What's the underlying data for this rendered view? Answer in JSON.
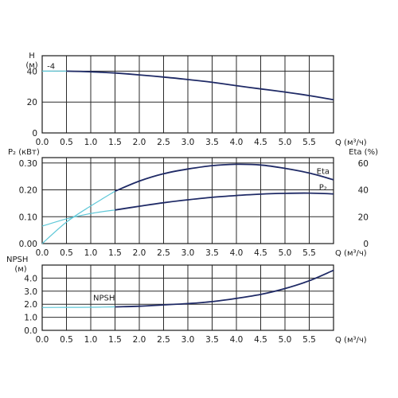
{
  "chart_data": [
    {
      "type": "line",
      "panel": "head",
      "ylabel": "H",
      "yunit": "(м)",
      "xlabel": "Q (м³/ч)",
      "xlim": [
        0,
        6
      ],
      "ylim": [
        0,
        50
      ],
      "yticks": [
        0,
        20,
        40
      ],
      "xticks": [
        "0.0",
        "0.5",
        "1.0",
        "1.5",
        "2.0",
        "2.5",
        "3.0",
        "3.5",
        "4.0",
        "4.5",
        "5.0",
        "5.5"
      ],
      "annotations": [
        {
          "text": "-4",
          "x": 0.1,
          "y": 40.5
        }
      ],
      "series": [
        {
          "style": "light",
          "x": [
            0,
            0.5,
            1.0,
            1.5
          ],
          "y": [
            40,
            40,
            39.5,
            38.8
          ]
        },
        {
          "style": "dark",
          "x": [
            0.5,
            1.0,
            1.5,
            2.0,
            2.5,
            3.0,
            3.5,
            4.0,
            4.5,
            5.0,
            5.5,
            6.0
          ],
          "y": [
            40,
            39.6,
            38.8,
            37.6,
            36.2,
            34.6,
            32.8,
            30.6,
            28.5,
            26.5,
            24.2,
            21.5
          ]
        }
      ]
    },
    {
      "type": "line",
      "panel": "power-efficiency",
      "ylabel": "P₂ (кВт)",
      "ylabel_right": "Eta (%)",
      "xlabel": "Q (м³/ч)",
      "xlim": [
        0,
        6
      ],
      "ylim": [
        0,
        0.32
      ],
      "ylim_right": [
        0,
        64
      ],
      "yticks": [
        "0.00",
        "0.10",
        "0.20",
        "0.30"
      ],
      "yticks_right": [
        0,
        20,
        40,
        60
      ],
      "xticks": [
        "0.0",
        "0.5",
        "1.0",
        "1.5",
        "2.0",
        "2.5",
        "3.0",
        "3.5",
        "4.0",
        "4.5",
        "5.0",
        "5.5"
      ],
      "series": [
        {
          "name": "Eta",
          "axis": "right",
          "style": "light",
          "x": [
            0,
            0.5,
            1.0,
            1.5
          ],
          "y": [
            0,
            16,
            28,
            39
          ]
        },
        {
          "name": "Eta",
          "axis": "right",
          "style": "dark",
          "x": [
            1.5,
            2.0,
            2.5,
            3.0,
            3.5,
            4.0,
            4.5,
            5.0,
            5.5,
            6.0
          ],
          "y": [
            39,
            46.5,
            52,
            55.5,
            58,
            59,
            58.5,
            56,
            52.5,
            47.5
          ]
        },
        {
          "name": "P₂",
          "axis": "left",
          "style": "light",
          "x": [
            0,
            0.5,
            1.0,
            1.5
          ],
          "y": [
            0.065,
            0.092,
            0.112,
            0.125
          ]
        },
        {
          "name": "P₂",
          "axis": "left",
          "style": "dark",
          "x": [
            1.5,
            2.0,
            2.5,
            3.0,
            3.5,
            4.0,
            4.5,
            5.0,
            5.5,
            6.0
          ],
          "y": [
            0.125,
            0.139,
            0.152,
            0.163,
            0.172,
            0.179,
            0.184,
            0.187,
            0.188,
            0.185
          ]
        }
      ],
      "labels": [
        {
          "text": "Eta",
          "x": 5.65,
          "y_right": 52
        },
        {
          "text": "P₂",
          "x": 5.7,
          "y": 0.2
        }
      ]
    },
    {
      "type": "line",
      "panel": "npsh",
      "ylabel": "NPSH",
      "yunit": "(м)",
      "xlabel": "Q (м³/ч)",
      "xlim": [
        0,
        6
      ],
      "ylim": [
        0,
        5
      ],
      "yticks": [
        "0.0",
        "1.0",
        "2.0",
        "3.0",
        "4.0"
      ],
      "xticks": [
        "0.0",
        "0.5",
        "1.0",
        "1.5",
        "2.0",
        "2.5",
        "3.0",
        "3.5",
        "4.0",
        "4.5",
        "5.0",
        "5.5"
      ],
      "series": [
        {
          "name": "NPSH",
          "style": "light",
          "x": [
            0,
            0.5,
            1.0,
            1.5
          ],
          "y": [
            1.75,
            1.76,
            1.77,
            1.8
          ]
        },
        {
          "name": "NPSH",
          "style": "dark",
          "x": [
            1.5,
            2.0,
            2.5,
            3.0,
            3.5,
            4.0,
            4.5,
            5.0,
            5.5,
            6.0
          ],
          "y": [
            1.8,
            1.85,
            1.95,
            2.05,
            2.2,
            2.45,
            2.75,
            3.2,
            3.8,
            4.6
          ]
        }
      ],
      "labels": [
        {
          "text": "NPSH",
          "x": 1.05,
          "y": 2.3
        }
      ]
    }
  ]
}
